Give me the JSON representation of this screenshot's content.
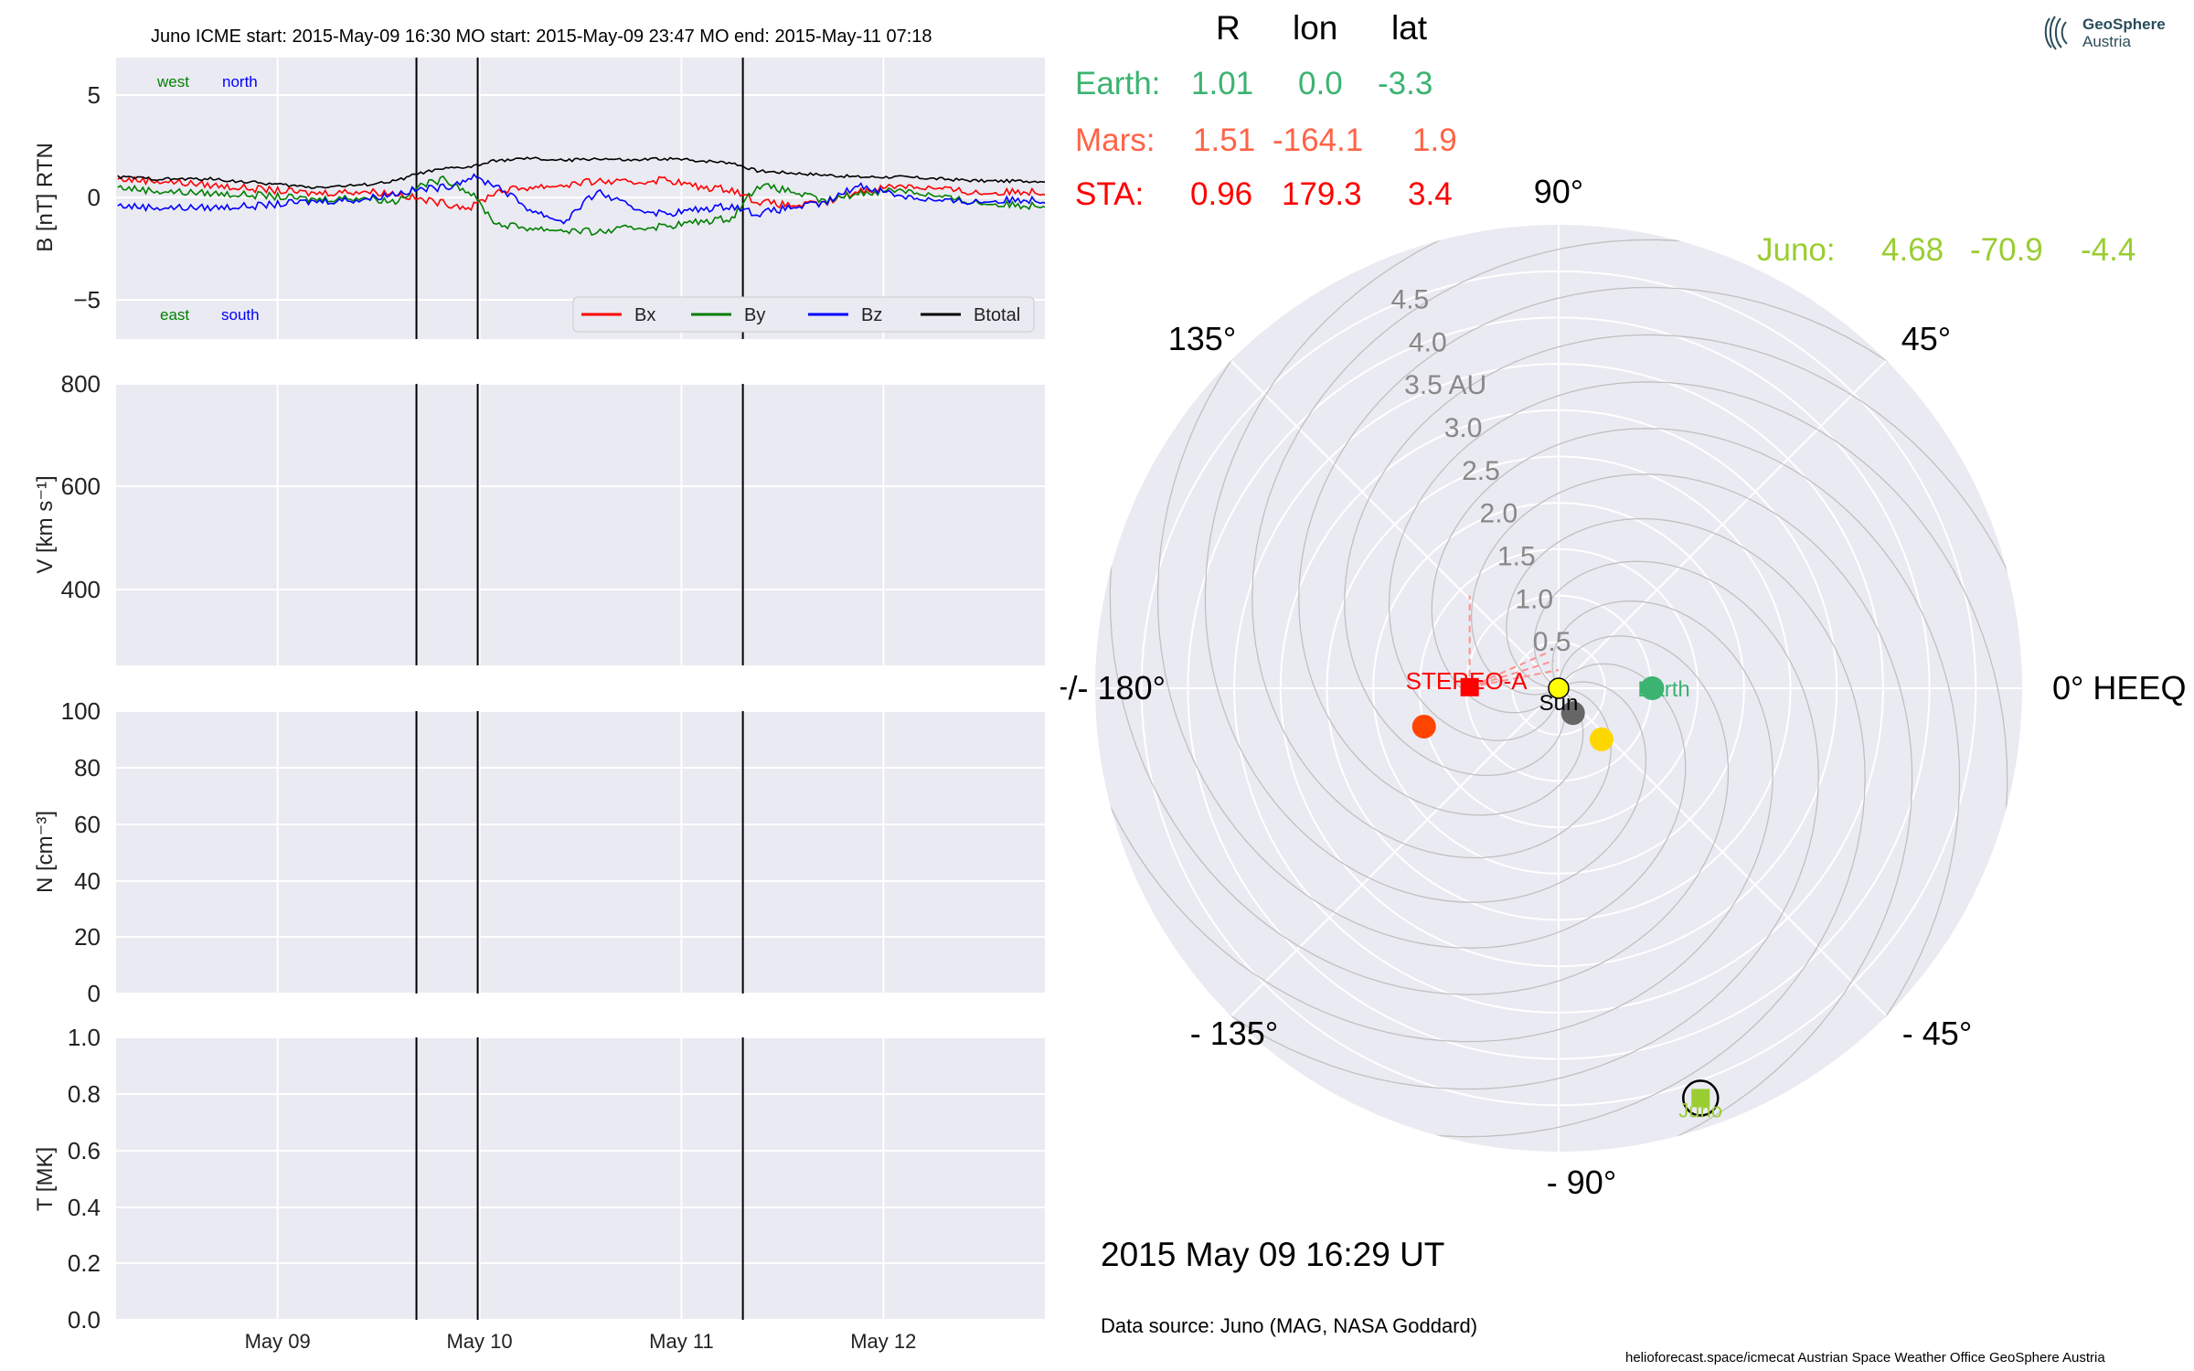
{
  "header": {
    "title": "Juno    ICME start: 2015-May-09 16:30   MO start: 2015-May-09 23:47   MO end: 2015-May-11 07:18"
  },
  "logo": {
    "line1": "GeoSphere",
    "line2": "Austria"
  },
  "table": {
    "col_r": "R",
    "col_lon": "lon",
    "col_lat": "lat",
    "rows": [
      {
        "name": "Earth:",
        "r": "1.01",
        "lon": "0.0",
        "lat": "-3.3",
        "color": "#3cb371"
      },
      {
        "name": "Mars:",
        "r": "1.51",
        "lon": "-164.1",
        "lat": "1.9",
        "color": "#ff6347"
      },
      {
        "name": "STA:",
        "r": "0.96",
        "lon": "179.3",
        "lat": "3.4",
        "color": "#ff0000"
      }
    ],
    "juno": {
      "name": "Juno:",
      "r": "4.68",
      "lon": "-70.9",
      "lat": "-4.4",
      "color": "#9acd32"
    }
  },
  "polar": {
    "angle_labels": {
      "a90": "90°",
      "a45": "45°",
      "a135": "135°",
      "a180": "+/- 180°",
      "a0": "0° HEEQ",
      "am45": "- 45°",
      "am90": "- 90°",
      "am135": "- 135°"
    },
    "radial_labels": [
      "0.5",
      "1.0",
      "1.5",
      "2.0",
      "2.5",
      "3.0",
      "3.5 AU",
      "4.0",
      "4.5"
    ],
    "body_labels": {
      "sun": "Sun",
      "earth": "Earth",
      "stereo": "STEREO-A",
      "juno": "Juno"
    },
    "bodies": [
      {
        "name": "Earth",
        "r": 1.01,
        "lon": 0.0,
        "color": "#3cb371"
      },
      {
        "name": "Mars",
        "r": 1.51,
        "lon": -164.1,
        "color": "#ff4500"
      },
      {
        "name": "STEREO-A",
        "r": 0.96,
        "lon": 179.3,
        "color": "#ff0000"
      },
      {
        "name": "Juno",
        "r": 4.68,
        "lon": -70.9,
        "color": "#9acd32"
      },
      {
        "name": "Mercury",
        "r": 0.31,
        "lon": -60,
        "color": "#666666"
      },
      {
        "name": "Venus",
        "r": 0.72,
        "lon": -50,
        "color": "#ffd700"
      }
    ]
  },
  "footer": {
    "datetime": "2015 May 09  16:29 UT",
    "source": "Data source: Juno (MAG, NASA Goddard)",
    "credits": "helioforecast.space/icmecat   Austrian Space Weather Office   GeoSphere Austria"
  },
  "chart_data": [
    {
      "type": "line",
      "ylabel": "B [nT] RTN",
      "ylim": [
        -7,
        7
      ],
      "yticks": [
        "5",
        "0",
        "−5"
      ],
      "xlabels": [
        "May 09",
        "May 10",
        "May 11",
        "May 12"
      ],
      "xlim_days": [
        8.2,
        12.8
      ],
      "event_lines_days": [
        "2015-05-09 16:30",
        "2015-05-09 23:47",
        "2015-05-11 07:18"
      ],
      "annotations": {
        "west": "west",
        "north": "north",
        "east": "east",
        "south": "south"
      },
      "grid": true,
      "legend": "bottom-right",
      "series": [
        {
          "name": "Bx",
          "color": "#ff0000",
          "x": [
            "2015-05-08 05:00",
            "2015-05-08 10:00",
            "2015-05-08 16:00",
            "2015-05-08 22:00",
            "2015-05-09 04:00",
            "2015-05-09 10:00",
            "2015-05-09 14:00",
            "2015-05-09 17:00",
            "2015-05-09 20:00",
            "2015-05-09 23:00",
            "2015-05-10 02:00",
            "2015-05-10 06:00",
            "2015-05-10 10:00",
            "2015-05-10 14:00",
            "2015-05-10 18:00",
            "2015-05-10 22:00",
            "2015-05-11 02:00",
            "2015-05-11 06:00",
            "2015-05-11 09:00",
            "2015-05-11 13:00",
            "2015-05-11 17:00",
            "2015-05-11 21:00",
            "2015-05-12 02:00",
            "2015-05-12 07:00",
            "2015-05-12 12:00",
            "2015-05-12 17:00",
            "2015-05-12 21:00"
          ],
          "values": [
            0.9,
            0.8,
            0.6,
            0.4,
            0.2,
            0.3,
            0.2,
            -0.1,
            -0.3,
            -0.5,
            0.3,
            0.5,
            0.6,
            0.8,
            0.7,
            0.9,
            0.5,
            0.4,
            -0.2,
            -0.4,
            -0.3,
            0.3,
            0.6,
            0.4,
            0.2,
            0.3,
            0.2
          ]
        },
        {
          "name": "By",
          "color": "#008000",
          "x": [
            "2015-05-08 05:00",
            "2015-05-08 10:00",
            "2015-05-08 16:00",
            "2015-05-08 22:00",
            "2015-05-09 04:00",
            "2015-05-09 10:00",
            "2015-05-09 14:00",
            "2015-05-09 17:00",
            "2015-05-09 20:00",
            "2015-05-09 23:00",
            "2015-05-10 02:00",
            "2015-05-10 06:00",
            "2015-05-10 10:00",
            "2015-05-10 14:00",
            "2015-05-10 18:00",
            "2015-05-10 22:00",
            "2015-05-11 02:00",
            "2015-05-11 06:00",
            "2015-05-11 09:00",
            "2015-05-11 13:00",
            "2015-05-11 17:00",
            "2015-05-11 21:00",
            "2015-05-12 02:00",
            "2015-05-12 07:00",
            "2015-05-12 12:00",
            "2015-05-12 17:00",
            "2015-05-12 21:00"
          ],
          "values": [
            0.5,
            0.3,
            0.2,
            0.1,
            -0.1,
            0.0,
            -0.2,
            0.6,
            0.9,
            0.2,
            -1.3,
            -1.5,
            -1.6,
            -1.7,
            -1.5,
            -1.4,
            -1.2,
            -1.0,
            0.6,
            0.3,
            -0.2,
            0.2,
            0.4,
            0.0,
            -0.3,
            -0.4,
            -0.3
          ]
        },
        {
          "name": "Bz",
          "color": "#0000ff",
          "x": [
            "2015-05-08 05:00",
            "2015-05-08 10:00",
            "2015-05-08 16:00",
            "2015-05-08 22:00",
            "2015-05-09 04:00",
            "2015-05-09 10:00",
            "2015-05-09 14:00",
            "2015-05-09 17:00",
            "2015-05-09 20:00",
            "2015-05-09 23:00",
            "2015-05-10 02:00",
            "2015-05-10 06:00",
            "2015-05-10 10:00",
            "2015-05-10 14:00",
            "2015-05-10 18:00",
            "2015-05-10 22:00",
            "2015-05-11 02:00",
            "2015-05-11 06:00",
            "2015-05-11 09:00",
            "2015-05-11 13:00",
            "2015-05-11 17:00",
            "2015-05-11 21:00",
            "2015-05-12 02:00",
            "2015-05-12 07:00",
            "2015-05-12 12:00",
            "2015-05-12 17:00",
            "2015-05-12 21:00"
          ],
          "values": [
            -0.4,
            -0.5,
            -0.5,
            -0.4,
            -0.2,
            -0.1,
            0.2,
            0.4,
            0.5,
            1.0,
            0.6,
            -0.6,
            -1.2,
            0.3,
            -0.5,
            -0.8,
            -0.6,
            -0.4,
            -0.8,
            -0.5,
            -0.3,
            0.6,
            0.1,
            -0.2,
            -0.2,
            -0.1,
            -0.2
          ]
        },
        {
          "name": "Btotal",
          "color": "#000000",
          "x": [
            "2015-05-08 05:00",
            "2015-05-08 10:00",
            "2015-05-08 16:00",
            "2015-05-08 22:00",
            "2015-05-09 04:00",
            "2015-05-09 10:00",
            "2015-05-09 14:00",
            "2015-05-09 17:00",
            "2015-05-09 20:00",
            "2015-05-09 23:00",
            "2015-05-10 02:00",
            "2015-05-10 06:00",
            "2015-05-10 10:00",
            "2015-05-10 14:00",
            "2015-05-10 18:00",
            "2015-05-10 22:00",
            "2015-05-11 02:00",
            "2015-05-11 06:00",
            "2015-05-11 09:00",
            "2015-05-11 13:00",
            "2015-05-11 17:00",
            "2015-05-11 21:00",
            "2015-05-12 02:00",
            "2015-05-12 07:00",
            "2015-05-12 12:00",
            "2015-05-12 17:00",
            "2015-05-12 21:00"
          ],
          "values": [
            1.0,
            0.9,
            0.9,
            0.7,
            0.5,
            0.6,
            0.8,
            1.2,
            1.4,
            1.5,
            1.8,
            1.9,
            1.8,
            1.9,
            1.8,
            1.9,
            1.8,
            1.7,
            1.3,
            1.2,
            1.1,
            1.0,
            1.0,
            0.9,
            0.8,
            0.8,
            0.8
          ]
        }
      ]
    },
    {
      "type": "line",
      "ylabel": "V [km s⁻¹]",
      "ylim": [
        250,
        800
      ],
      "yticks": [
        "800",
        "600",
        "400"
      ],
      "series": []
    },
    {
      "type": "line",
      "ylabel": "N [cm⁻³]",
      "ylim": [
        0,
        100
      ],
      "yticks": [
        "100",
        "80",
        "60",
        "40",
        "20",
        "0"
      ],
      "series": []
    },
    {
      "type": "line",
      "ylabel": "T [MK]",
      "ylim": [
        0,
        1
      ],
      "yticks": [
        "1.0",
        "0.8",
        "0.6",
        "0.4",
        "0.2",
        "0.0"
      ],
      "series": []
    }
  ]
}
